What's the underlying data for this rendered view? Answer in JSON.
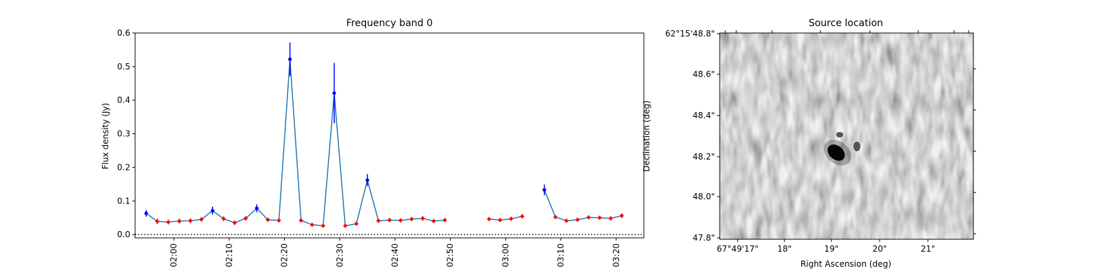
{
  "chart_data": [
    {
      "type": "line",
      "title": "Frequency band 0",
      "xlabel": "",
      "ylabel": "Flux density (Jy)",
      "ylim": [
        -0.01,
        0.6
      ],
      "x_tick_labels": [
        "02:00",
        "02:10",
        "02:20",
        "02:30",
        "02:40",
        "02:50",
        "03:00",
        "03:10",
        "03:20"
      ],
      "y_tick_labels": [
        "0.0",
        "0.1",
        "0.2",
        "0.3",
        "0.4",
        "0.5",
        "0.6"
      ],
      "reference_line": {
        "y": 0.0,
        "style": "dotted",
        "color": "#000000"
      },
      "line_color": "#1f77b4",
      "segments": [
        {
          "times": [
            "01:55",
            "01:57",
            "01:59",
            "02:01",
            "02:03",
            "02:05",
            "02:07",
            "02:09",
            "02:11",
            "02:13",
            "02:15",
            "02:17",
            "02:19",
            "02:21",
            "02:23",
            "02:25",
            "02:27",
            "02:29",
            "02:31",
            "02:33",
            "02:35",
            "02:37",
            "02:39",
            "02:41",
            "02:43",
            "02:45",
            "02:47",
            "02:49"
          ],
          "values": [
            0.063,
            0.039,
            0.037,
            0.04,
            0.041,
            0.045,
            0.071,
            0.047,
            0.035,
            0.048,
            0.078,
            0.044,
            0.042,
            0.522,
            0.042,
            0.029,
            0.026,
            0.421,
            0.026,
            0.032,
            0.162,
            0.041,
            0.043,
            0.042,
            0.046,
            0.048,
            0.04,
            0.043
          ],
          "errors": [
            0.01,
            0.008,
            0.007,
            0.007,
            0.007,
            0.007,
            0.012,
            0.007,
            0.007,
            0.007,
            0.012,
            0.006,
            0.006,
            0.05,
            0.006,
            0.005,
            0.005,
            0.09,
            0.005,
            0.006,
            0.018,
            0.006,
            0.006,
            0.006,
            0.006,
            0.007,
            0.006,
            0.006
          ],
          "limits": [
            false,
            true,
            true,
            true,
            true,
            true,
            false,
            true,
            true,
            true,
            false,
            true,
            true,
            false,
            true,
            true,
            true,
            false,
            true,
            true,
            false,
            true,
            true,
            true,
            true,
            true,
            true,
            true
          ]
        },
        {
          "times": [
            "02:57",
            "02:59",
            "03:01",
            "03:03"
          ],
          "values": [
            0.046,
            0.043,
            0.047,
            0.054
          ],
          "errors": [
            0.006,
            0.006,
            0.006,
            0.007
          ],
          "limits": [
            true,
            true,
            true,
            true
          ]
        },
        {
          "times": [
            "03:07",
            "03:09",
            "03:11",
            "03:13",
            "03:15",
            "03:17",
            "03:19",
            "03:21"
          ],
          "values": [
            0.133,
            0.052,
            0.041,
            0.044,
            0.051,
            0.05,
            0.048,
            0.056
          ],
          "errors": [
            0.016,
            0.006,
            0.006,
            0.006,
            0.006,
            0.006,
            0.006,
            0.007
          ],
          "limits": [
            false,
            true,
            true,
            true,
            true,
            true,
            true,
            true
          ]
        }
      ],
      "detection_color": "#0000ff",
      "limit_color": "#ff0000"
    },
    {
      "type": "heatmap",
      "title": "Source location",
      "xlabel": "Right Ascension (deg)",
      "ylabel": "Declination (deg)",
      "x_tick_labels": [
        "67°49'17\"",
        "18\"",
        "19\"",
        "20\"",
        "21\""
      ],
      "y_tick_labels": [
        "47.8\"",
        "48.0\"",
        "48.2\"",
        "48.4\"",
        "48.6\"",
        "62°15'48.8\""
      ],
      "colormap": "grayscale",
      "source": "compact dark blob near center"
    }
  ]
}
